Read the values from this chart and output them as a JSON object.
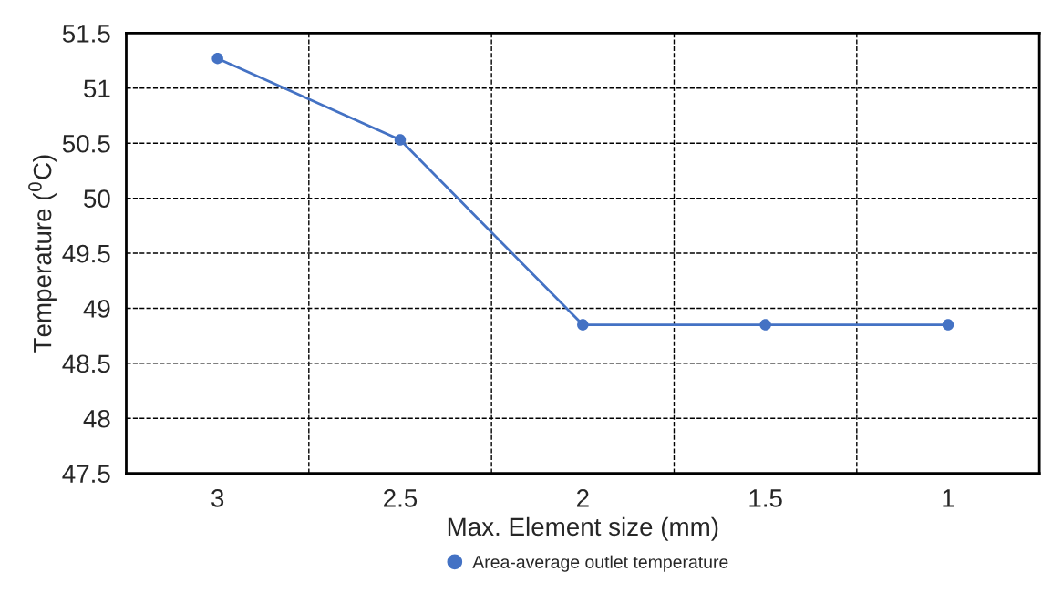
{
  "chart_data": {
    "type": "line",
    "xlabel": "Max. Element size (mm)",
    "ylabel": "Temperature ($^{0}$C)",
    "categories": [
      "3",
      "2.5",
      "2",
      "1.5",
      "1"
    ],
    "series": [
      {
        "name": "Area-average outlet temperature",
        "color": "#4472c4",
        "values": [
          51.27,
          50.53,
          48.85,
          48.85,
          48.85
        ]
      }
    ],
    "ylim": [
      47.5,
      51.5
    ],
    "yticks": [
      47.5,
      48,
      48.5,
      49,
      49.5,
      50,
      50.5,
      51,
      51.5
    ],
    "grid": true,
    "legend": "bottom",
    "marker": "circle",
    "line_style": "solid"
  }
}
